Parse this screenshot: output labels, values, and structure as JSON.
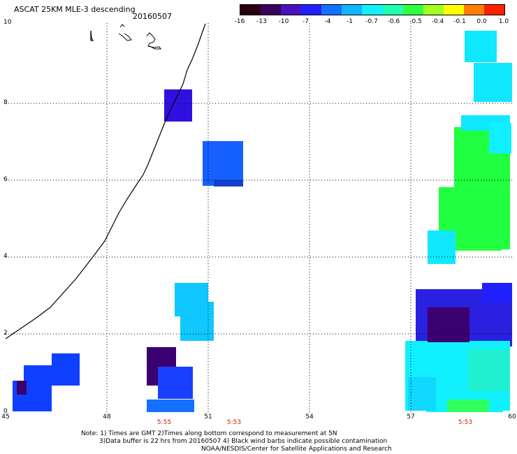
{
  "title": "ASCAT 25KM MLE-3 descending",
  "date": "20160507",
  "colorbar": {
    "labels": [
      "-16",
      "-13",
      "-10",
      "-7",
      "-4",
      "-1",
      "-0.7",
      "-0.6",
      "-0.5",
      "-0.4",
      "-0.1",
      "0.0",
      "1.0"
    ],
    "colors": [
      "#2a0010",
      "#3c0060",
      "#4a10c0",
      "#2020ff",
      "#1470ff",
      "#10b4ff",
      "#10f0ff",
      "#20ffb0",
      "#30ff40",
      "#a0ff20",
      "#ffff00",
      "#ff8000",
      "#ff2000"
    ]
  },
  "x_axis": {
    "ticks": [
      "45",
      "48",
      "51",
      "54",
      "57",
      "60"
    ]
  },
  "y_axis": {
    "ticks": [
      "0",
      "2",
      "4",
      "6",
      "8",
      "10"
    ]
  },
  "times": [
    "5:55",
    "5:53",
    "5:53"
  ],
  "notes": [
    "Note: 1) Times are GMT 2)Times along bottom correspond to measurement at 5N",
    "3)Data buffer is 22 hrs from 20160507 4) Black wind barbs indicate possible contamination",
    "NOAA/NESDIS/Center for Satellite Applications and Research"
  ],
  "swaths": [
    {
      "name": "swath-sw-1",
      "color": "#1040ff"
    },
    {
      "name": "swath-sw-2",
      "color": "#3a0070"
    },
    {
      "name": "swath-coast-8n",
      "color": "#3010e0"
    },
    {
      "name": "swath-center-6n",
      "color": "#1560ff"
    },
    {
      "name": "swath-center-2n",
      "color": "#10c8ff"
    },
    {
      "name": "swath-ne-9n",
      "color": "#10e8ff"
    },
    {
      "name": "swath-e-6n",
      "color": "#20ff40"
    },
    {
      "name": "swath-se-2n",
      "color": "#2a20e0"
    },
    {
      "name": "swath-se-1n",
      "color": "#10f0ff"
    }
  ]
}
